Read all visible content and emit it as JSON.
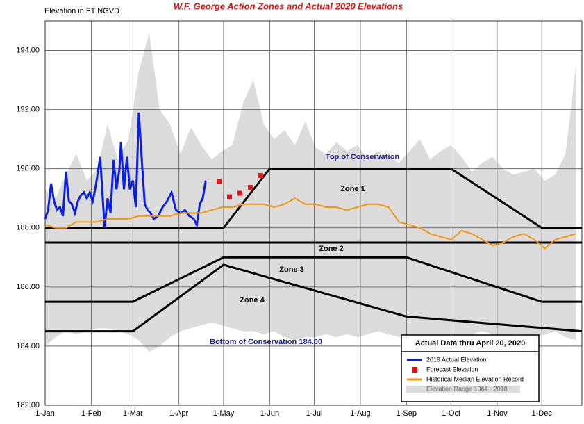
{
  "chart_data": {
    "type": "line",
    "title": "W.F. George Action Zones and Actual 2020 Elevations",
    "y_label": "Elevation in FT NGVD",
    "legend_title": "Actual Data thru April 20, 2020",
    "xlim": [
      0,
      361
    ],
    "ylim": [
      182,
      195
    ],
    "xticks": [
      {
        "value": 0,
        "label": "1-Jan"
      },
      {
        "value": 31,
        "label": "1-Feb"
      },
      {
        "value": 59,
        "label": "1-Mar"
      },
      {
        "value": 90,
        "label": "1-Apr"
      },
      {
        "value": 120,
        "label": "1-May"
      },
      {
        "value": 151,
        "label": "1-Jun"
      },
      {
        "value": 181,
        "label": "1-Jul"
      },
      {
        "value": 212,
        "label": "1-Aug"
      },
      {
        "value": 243,
        "label": "1-Sep"
      },
      {
        "value": 273,
        "label": "1-Oct"
      },
      {
        "value": 304,
        "label": "1-Nov"
      },
      {
        "value": 334,
        "label": "1-Dec"
      }
    ],
    "yticks": [
      {
        "value": 182,
        "label": "182.00"
      },
      {
        "value": 184,
        "label": "184.00"
      },
      {
        "value": 186,
        "label": "186.00"
      },
      {
        "value": 188,
        "label": "188.00"
      },
      {
        "value": 190,
        "label": "190.00"
      },
      {
        "value": 192,
        "label": "192.00"
      },
      {
        "value": 194,
        "label": "194.00"
      }
    ],
    "grid": true,
    "series": [
      {
        "name": "2019 Actual Elevation",
        "kind": "line",
        "color": "#0a1ee6",
        "x": [
          0,
          2,
          4,
          6,
          8,
          10,
          12,
          14,
          16,
          18,
          20,
          22,
          24,
          26,
          28,
          30,
          32,
          34,
          37,
          40,
          42,
          44,
          46,
          48,
          50,
          51,
          53,
          55,
          57,
          59,
          61,
          63,
          65,
          67,
          69,
          71,
          73,
          76,
          79,
          82,
          85,
          88,
          91,
          94,
          97,
          100,
          102,
          104,
          106,
          108
        ],
        "values": [
          188.3,
          188.6,
          189.5,
          188.9,
          188.6,
          188.7,
          188.4,
          189.9,
          188.9,
          188.8,
          188.5,
          188.9,
          189.1,
          189.2,
          189.0,
          189.2,
          188.9,
          189.4,
          190.4,
          188.0,
          189.0,
          188.5,
          190.3,
          189.3,
          190.0,
          190.9,
          189.3,
          190.4,
          189.3,
          189.6,
          188.7,
          191.9,
          190.3,
          188.8,
          188.6,
          188.5,
          188.3,
          188.4,
          188.7,
          188.9,
          189.2,
          188.6,
          188.5,
          188.6,
          188.4,
          188.3,
          188.1,
          188.8,
          189.0,
          189.6
        ]
      },
      {
        "name": "Forecast Elevation",
        "kind": "scatter",
        "color": "#e81010",
        "x": [
          117,
          124,
          131,
          138,
          145
        ],
        "values": [
          189.58,
          189.05,
          189.17,
          189.37,
          189.77
        ]
      },
      {
        "name": "Historical Median Elevation Record",
        "kind": "line",
        "color": "#f5960f",
        "x": [
          0,
          7,
          14,
          21,
          28,
          35,
          42,
          49,
          56,
          63,
          70,
          77,
          84,
          91,
          98,
          105,
          112,
          119,
          126,
          133,
          140,
          147,
          154,
          161,
          168,
          175,
          182,
          189,
          196,
          203,
          210,
          217,
          224,
          231,
          238,
          245,
          252,
          259,
          266,
          273,
          280,
          287,
          294,
          301,
          308,
          315,
          322,
          329,
          336,
          343,
          350,
          357
        ],
        "values": [
          188.1,
          188.0,
          188.0,
          188.2,
          188.2,
          188.2,
          188.3,
          188.3,
          188.3,
          188.4,
          188.4,
          188.4,
          188.4,
          188.5,
          188.5,
          188.5,
          188.6,
          188.7,
          188.7,
          188.8,
          188.8,
          188.8,
          188.7,
          188.8,
          189.0,
          188.8,
          188.8,
          188.7,
          188.7,
          188.6,
          188.7,
          188.8,
          188.8,
          188.7,
          188.2,
          188.1,
          188.0,
          187.8,
          187.7,
          187.6,
          187.9,
          187.8,
          187.6,
          187.4,
          187.5,
          187.7,
          187.8,
          187.6,
          187.3,
          187.6,
          187.7,
          187.8
        ]
      },
      {
        "name": "Elevation Range  1964 - 2018",
        "kind": "area",
        "color": "#dcdcdc",
        "x": [
          0,
          7,
          14,
          21,
          28,
          35,
          42,
          49,
          56,
          63,
          70,
          77,
          84,
          91,
          98,
          105,
          112,
          119,
          126,
          133,
          140,
          147,
          154,
          161,
          168,
          175,
          182,
          189,
          196,
          203,
          210,
          217,
          224,
          231,
          238,
          245,
          252,
          259,
          266,
          273,
          280,
          287,
          294,
          301,
          308,
          315,
          322,
          329,
          336,
          343,
          350,
          357
        ],
        "high": [
          189.3,
          189.0,
          189.8,
          190.5,
          189.6,
          190.0,
          191.5,
          190.3,
          191.0,
          193.3,
          194.6,
          192.0,
          191.5,
          190.5,
          191.4,
          190.8,
          190.3,
          190.6,
          190.8,
          192.2,
          193.0,
          191.5,
          191.0,
          191.3,
          190.8,
          191.6,
          190.7,
          190.5,
          190.9,
          190.6,
          190.8,
          190.3,
          190.6,
          190.4,
          190.2,
          190.6,
          191.0,
          190.3,
          190.6,
          190.8,
          190.4,
          189.9,
          190.2,
          190.4,
          190.0,
          189.8,
          189.9,
          190.0,
          189.6,
          189.8,
          190.5,
          193.5
        ],
        "low": [
          184.0,
          184.3,
          184.5,
          184.4,
          184.5,
          184.6,
          184.6,
          184.5,
          184.4,
          184.2,
          183.8,
          184.0,
          184.3,
          184.5,
          184.6,
          184.7,
          184.8,
          184.7,
          184.6,
          184.5,
          184.5,
          184.4,
          184.5,
          184.3,
          184.2,
          184.3,
          184.3,
          184.4,
          184.3,
          184.4,
          184.3,
          184.4,
          184.5,
          184.4,
          184.3,
          184.4,
          184.2,
          184.3,
          184.3,
          184.4,
          184.3,
          184.4,
          184.5,
          184.4,
          184.3,
          184.4,
          184.4,
          184.3,
          184.4,
          184.5,
          184.3,
          184.2
        ]
      }
    ],
    "zones": [
      {
        "color": "#000000",
        "x": [
          0,
          120,
          151,
          273,
          334,
          361
        ],
        "values": [
          188,
          188,
          190,
          190,
          188,
          188
        ]
      },
      {
        "color": "#000000",
        "x": [
          0,
          361
        ],
        "values": [
          187.5,
          187.5
        ]
      },
      {
        "color": "#000000",
        "x": [
          0,
          59,
          120,
          243,
          334,
          361
        ],
        "values": [
          185.5,
          185.5,
          187,
          187,
          185.5,
          185.5
        ]
      },
      {
        "color": "#000000",
        "x": [
          0,
          59,
          120,
          243,
          361
        ],
        "values": [
          184.5,
          184.5,
          186.75,
          185,
          184.5
        ]
      }
    ],
    "annotations": [
      "Top of Conservation",
      "Zone 1",
      "Zone 2",
      "Zone 3",
      "Zone 4",
      "Bottom of Conservation 184.00"
    ]
  }
}
